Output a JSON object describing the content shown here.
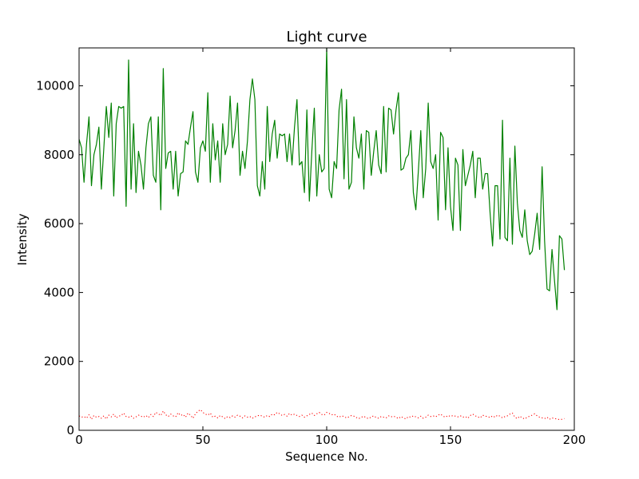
{
  "chart_data": {
    "type": "line",
    "title": "Light curve",
    "xlabel": "Sequence No.",
    "ylabel": "Intensity",
    "xlim": [
      0,
      200
    ],
    "ylim": [
      0,
      11100
    ],
    "xticks": [
      0,
      50,
      100,
      150,
      200
    ],
    "yticks": [
      0,
      2000,
      4000,
      6000,
      8000,
      10000
    ],
    "grid": false,
    "legend": "none",
    "series": [
      {
        "style": "solid",
        "color": "#008000",
        "x_start": 0,
        "x_step": 1,
        "values": [
          8450,
          8200,
          7200,
          8300,
          9100,
          7100,
          8000,
          8300,
          8800,
          7000,
          8200,
          9400,
          8500,
          9500,
          6800,
          8900,
          9400,
          9350,
          9400,
          6500,
          10750,
          7000,
          8900,
          6900,
          8100,
          7700,
          7000,
          8200,
          8900,
          9100,
          7400,
          7200,
          9100,
          6400,
          10500,
          7600,
          8050,
          8100,
          7000,
          8100,
          6800,
          7450,
          7500,
          8400,
          8300,
          8800,
          9250,
          7500,
          7200,
          8200,
          8400,
          8100,
          9800,
          7200,
          8900,
          7850,
          8400,
          7200,
          8900,
          8000,
          8300,
          9700,
          8200,
          8700,
          9500,
          7400,
          8100,
          7600,
          8400,
          9600,
          10200,
          9600,
          7100,
          6800,
          7800,
          7000,
          9400,
          7800,
          8600,
          9000,
          7900,
          8600,
          8550,
          8600,
          7800,
          8600,
          7700,
          8800,
          9600,
          7700,
          7800,
          6900,
          9300,
          6650,
          8100,
          9350,
          6800,
          8000,
          7500,
          7600,
          11100,
          7000,
          6750,
          7800,
          7600,
          9300,
          9900,
          7300,
          9600,
          7000,
          7200,
          9100,
          8200,
          7900,
          8600,
          7000,
          8700,
          8650,
          7400,
          8100,
          8700,
          7700,
          7450,
          9400,
          7500,
          9350,
          9300,
          8600,
          9300,
          9800,
          7550,
          7600,
          7900,
          8000,
          8700,
          6900,
          6400,
          7500,
          8700,
          6750,
          7600,
          9500,
          7800,
          7600,
          8000,
          6100,
          8650,
          8500,
          6400,
          8200,
          6500,
          5800,
          7900,
          7700,
          5800,
          8150,
          7100,
          7400,
          7700,
          8100,
          6750,
          7900,
          7900,
          7000,
          7450,
          7450,
          6300,
          5350,
          7100,
          7100,
          5550,
          9000,
          5600,
          5500,
          7900,
          5400,
          8250,
          6600,
          5800,
          5600,
          6400,
          5500,
          5100,
          5200,
          5700,
          6300,
          5250,
          7650,
          5500,
          4100,
          4050,
          5250,
          4350,
          3500,
          5650,
          5550,
          4650
        ]
      },
      {
        "style": "dotted",
        "color": "#ff0000",
        "x_start": 0,
        "x_step": 1,
        "values": [
          420,
          380,
          400,
          350,
          450,
          320,
          430,
          380,
          400,
          350,
          420,
          330,
          440,
          390,
          470,
          360,
          410,
          430,
          500,
          400,
          380,
          420,
          350,
          390,
          440,
          410,
          380,
          430,
          370,
          460,
          400,
          520,
          480,
          430,
          560,
          450,
          400,
          470,
          420,
          390,
          510,
          430,
          460,
          380,
          500,
          440,
          350,
          480,
          550,
          600,
          520,
          470,
          440,
          500,
          380,
          410,
          360,
          430,
          390,
          340,
          400,
          370,
          420,
          380,
          440,
          410,
          360,
          420,
          380,
          400,
          350,
          390,
          420,
          440,
          410,
          380,
          430,
          400,
          470,
          450,
          520,
          480,
          430,
          460,
          410,
          490,
          440,
          470,
          430,
          400,
          440,
          380,
          420,
          460,
          500,
          430,
          480,
          520,
          460,
          440,
          520,
          490,
          450,
          470,
          410,
          380,
          420,
          400,
          360,
          390,
          430,
          410,
          370,
          340,
          380,
          410,
          360,
          340,
          390,
          420,
          370,
          350,
          400,
          380,
          360,
          420,
          390,
          410,
          380,
          340,
          400,
          360,
          330,
          400,
          380,
          420,
          390,
          360,
          410,
          350,
          380,
          440,
          400,
          420,
          390,
          440,
          470,
          410,
          380,
          430,
          400,
          430,
          410,
          390,
          420,
          380,
          400,
          350,
          430,
          470,
          420,
          390,
          360,
          440,
          410,
          400,
          370,
          420,
          380,
          440,
          410,
          360,
          400,
          420,
          470,
          500,
          380,
          340,
          410,
          360,
          330,
          380,
          410,
          440,
          480,
          420,
          380,
          360,
          340,
          380,
          320,
          360,
          340,
          330,
          310,
          320,
          340
        ]
      }
    ]
  }
}
